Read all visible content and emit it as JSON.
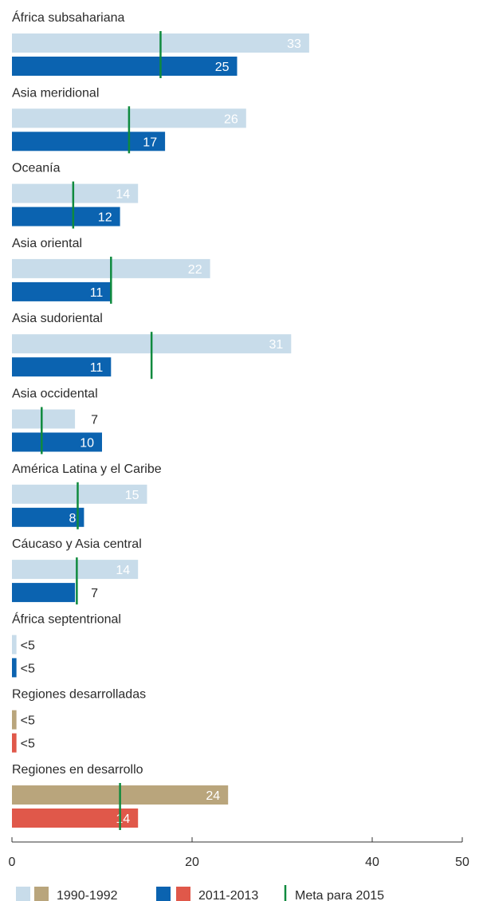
{
  "chart_data": {
    "type": "bar",
    "orientation": "horizontal",
    "categories": [
      "África subsahariana",
      "Asia meridional",
      "Oceanía",
      "Asia oriental",
      "Asia sudoriental",
      "Asia occidental",
      "América Latina y el Caribe",
      "Cáucaso y Asia central",
      "África septentrional",
      "Regiones desarrolladas",
      "Regiones en desarrollo"
    ],
    "series": [
      {
        "name": "1990-1992",
        "values": [
          33,
          26,
          14,
          22,
          31,
          7,
          15,
          14,
          0.5,
          0.5,
          24
        ],
        "labels": [
          "33",
          "26",
          "14",
          "22",
          "31",
          "7",
          "15",
          "14",
          "<5",
          "<5",
          "24"
        ]
      },
      {
        "name": "2011-2013",
        "values": [
          25,
          17,
          12,
          11,
          11,
          10,
          8,
          7,
          0.5,
          0.5,
          14
        ],
        "labels": [
          "25",
          "17",
          "12",
          "11",
          "11",
          "10",
          "8",
          "7",
          "<5",
          "<5",
          "14"
        ]
      }
    ],
    "target": {
      "name": "Meta para 2015",
      "values": [
        16.5,
        13,
        6.8,
        11,
        15.5,
        3.3,
        7.3,
        7.2,
        null,
        null,
        12
      ]
    },
    "xlim": [
      0,
      50
    ],
    "xticks": [
      0,
      20,
      40,
      50
    ],
    "legend_position": "bottom",
    "colors": {
      "light_blue": "#c8dcea",
      "dark_blue": "#0b63b0",
      "tan": "#b9a57c",
      "red": "#e0584a",
      "target_green": "#0f8a3e",
      "axis": "#333333",
      "text": "#2b2b2b"
    },
    "highlight_categories": [
      "Regiones desarrolladas",
      "Regiones en desarrollo"
    ],
    "legend": {
      "period1": "1990-1992",
      "period2": "2011-2013",
      "target": "Meta para 2015"
    }
  }
}
